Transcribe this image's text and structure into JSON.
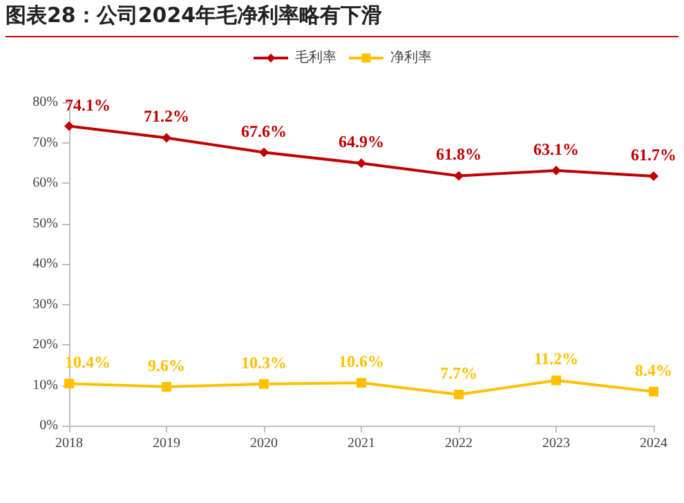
{
  "chart_data": {
    "type": "line",
    "title": "图表28：公司2024年毛净利率略有下滑",
    "categories": [
      "2018",
      "2019",
      "2020",
      "2021",
      "2022",
      "2023",
      "2024"
    ],
    "series": [
      {
        "name": "毛利率",
        "color": "#c00000",
        "values": [
          74.1,
          71.2,
          67.6,
          64.9,
          61.8,
          63.1,
          61.7
        ],
        "value_labels": [
          "74.1%",
          "71.2%",
          "67.6%",
          "64.9%",
          "61.8%",
          "63.1%",
          "61.7%"
        ],
        "marker": "diamond"
      },
      {
        "name": "净利率",
        "color": "#ffc000",
        "values": [
          10.4,
          9.6,
          10.3,
          10.6,
          7.7,
          11.2,
          8.4
        ],
        "value_labels": [
          "10.4%",
          "9.6%",
          "10.3%",
          "10.6%",
          "7.7%",
          "11.2%",
          "8.4%"
        ],
        "marker": "square"
      }
    ],
    "ylim": [
      0,
      80
    ],
    "yticks": [
      {
        "value": 0,
        "label": "0%"
      },
      {
        "value": 10,
        "label": "10%"
      },
      {
        "value": 20,
        "label": "20%"
      },
      {
        "value": 30,
        "label": "30%"
      },
      {
        "value": 40,
        "label": "40%"
      },
      {
        "value": 50,
        "label": "50%"
      },
      {
        "value": 60,
        "label": "60%"
      },
      {
        "value": 70,
        "label": "70%"
      },
      {
        "value": 80,
        "label": "80%"
      }
    ],
    "grid": false,
    "legend": "top"
  }
}
